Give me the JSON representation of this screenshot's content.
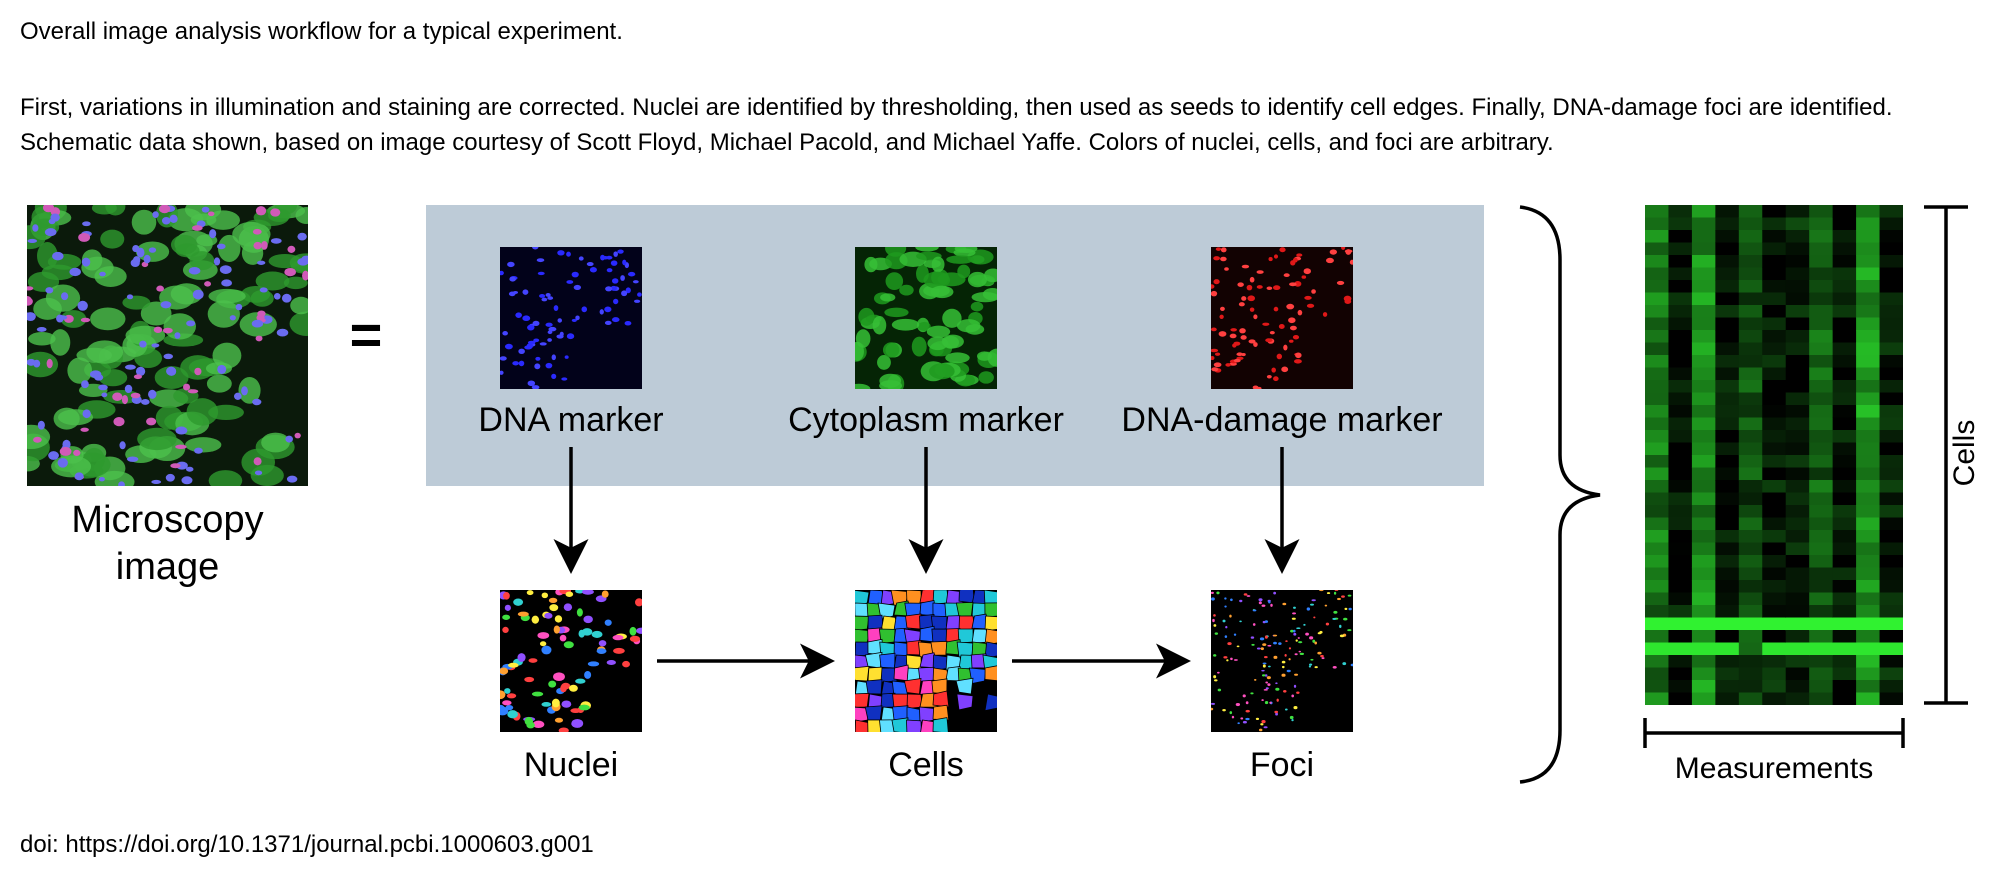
{
  "caption": {
    "title": "Overall image analysis workflow for a typical experiment.",
    "description": "First, variations in illumination and staining are corrected. Nuclei are identified by thresholding, then used as seeds to identify cell edges. Finally, DNA-damage foci are identified. Schematic data shown, based on image courtesy of Scott Floyd, Michael Pacold, and Michael Yaffe. Colors of nuclei, cells, and foci are arbitrary.",
    "doi": "doi: https://doi.org/10.1371/journal.pcbi.1000603.g001"
  },
  "diagram": {
    "source": {
      "label_line1": "Microscopy",
      "label_line2": "image"
    },
    "equals_sign": "=",
    "markers": [
      {
        "label": "DNA marker",
        "color": "#1a1aff"
      },
      {
        "label": "Cytoplasm marker",
        "color": "#22cc22"
      },
      {
        "label": "DNA-damage marker",
        "color": "#e01010"
      }
    ],
    "outputs": [
      {
        "label": "Nuclei"
      },
      {
        "label": "Cells"
      },
      {
        "label": "Foci"
      }
    ],
    "matrix": {
      "x_label": "Measurements",
      "y_label": "Cells"
    },
    "colors": {
      "panel": "#bdcbd7",
      "heatmap_high": "#3cff3c",
      "heatmap_low": "#000000"
    }
  }
}
